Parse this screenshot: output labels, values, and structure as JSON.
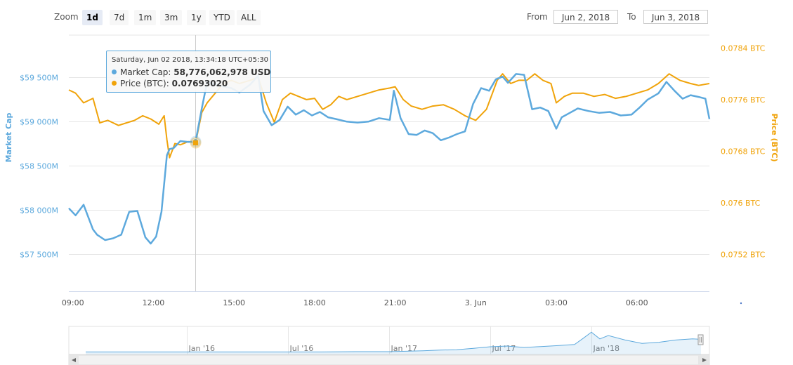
{
  "toolbar": {
    "zoom_label": "Zoom",
    "zoom_buttons": [
      "1d",
      "7d",
      "1m",
      "3m",
      "1y",
      "YTD",
      "ALL"
    ],
    "active_zoom": "1d",
    "from_label": "From",
    "from_value": "Jun 2, 2018",
    "to_label": "To",
    "to_value": "Jun 3, 2018"
  },
  "tooltip": {
    "header": "Saturday, Jun 02 2018, 13:34:18 UTC+05:30",
    "market_cap_label": "Market Cap:",
    "market_cap_value": "58,776,062,978 USD",
    "price_label": "Price (BTC):",
    "price_value": "0.07693020"
  },
  "colors": {
    "market_cap": "#5da9dd",
    "price": "#f0a30a",
    "grid": "#e6e6e6",
    "navigator": "#5da9dd"
  },
  "chart_data": {
    "type": "line",
    "xlabel": "",
    "y_left_label": "Market Cap",
    "y_right_label": "Price (BTC)",
    "x_tick_labels": [
      "09:00",
      "12:00",
      "15:00",
      "18:00",
      "21:00",
      "3. Jun",
      "03:00",
      "06:00"
    ],
    "x_tick_hours": [
      9,
      12,
      15,
      18,
      21,
      24,
      27,
      30
    ],
    "xlim_hours": [
      8.85,
      32.7
    ],
    "y_left_ticks": [
      "$57 500M",
      "$58 000M",
      "$58 500M",
      "$59 000M",
      "$59 500M"
    ],
    "y_left_tick_values": [
      57500,
      58000,
      58500,
      59000,
      59500
    ],
    "y_left_lim_musd": [
      57080,
      59980
    ],
    "y_right_ticks": [
      "0.0752 BTC",
      "0.076 BTC",
      "0.0768 BTC",
      "0.0776 BTC",
      "0.0784 BTC"
    ],
    "y_right_tick_values": [
      0.0752,
      0.076,
      0.0768,
      0.0776,
      0.0784
    ],
    "y_right_lim": [
      0.07463,
      0.0786
    ],
    "crosshair_hour": 13.57,
    "grid": true,
    "legend": "none",
    "series": [
      {
        "name": "Market Cap",
        "axis": "left",
        "x_hours": [
          8.85,
          9.1,
          9.4,
          9.75,
          9.9,
          10.2,
          10.5,
          10.8,
          11.1,
          11.4,
          11.7,
          11.9,
          12.1,
          12.3,
          12.5,
          12.6,
          12.75,
          13.0,
          13.3,
          13.57,
          13.8,
          14.0,
          14.3,
          14.6,
          14.9,
          15.2,
          15.6,
          15.9,
          16.1,
          16.4,
          16.7,
          17.0,
          17.3,
          17.6,
          17.9,
          18.2,
          18.5,
          18.8,
          19.2,
          19.6,
          20.0,
          20.4,
          20.8,
          20.95,
          21.2,
          21.5,
          21.8,
          22.1,
          22.4,
          22.7,
          23.0,
          23.3,
          23.6,
          23.9,
          24.2,
          24.5,
          24.75,
          25.0,
          25.2,
          25.5,
          25.8,
          26.1,
          26.4,
          26.7,
          27.0,
          27.2,
          27.5,
          27.8,
          28.2,
          28.6,
          29.0,
          29.4,
          29.8,
          30.1,
          30.4,
          30.8,
          31.1,
          31.4,
          31.7,
          32.0,
          32.3,
          32.55,
          32.7
        ],
        "values": [
          58020,
          57940,
          58060,
          57780,
          57720,
          57660,
          57680,
          57720,
          57980,
          57990,
          57690,
          57620,
          57700,
          57980,
          58620,
          58690,
          58700,
          58780,
          58770,
          58776,
          59150,
          59450,
          59420,
          59400,
          59380,
          59330,
          59420,
          59520,
          59120,
          58960,
          59020,
          59170,
          59080,
          59130,
          59070,
          59110,
          59050,
          59030,
          59000,
          58990,
          59000,
          59040,
          59020,
          59350,
          59040,
          58860,
          58850,
          58900,
          58870,
          58790,
          58820,
          58860,
          58890,
          59200,
          59380,
          59350,
          59480,
          59510,
          59440,
          59540,
          59530,
          59140,
          59160,
          59120,
          58920,
          59050,
          59100,
          59150,
          59120,
          59100,
          59110,
          59070,
          59080,
          59160,
          59250,
          59320,
          59450,
          59350,
          59260,
          59300,
          59280,
          59260,
          59030
        ]
      },
      {
        "name": "Price (BTC)",
        "axis": "right",
        "x_hours": [
          8.85,
          9.1,
          9.4,
          9.75,
          10.0,
          10.3,
          10.7,
          11.0,
          11.3,
          11.6,
          11.9,
          12.2,
          12.4,
          12.5,
          12.6,
          12.8,
          13.0,
          13.3,
          13.57,
          13.8,
          14.0,
          14.3,
          14.6,
          14.9,
          15.2,
          15.6,
          15.9,
          16.2,
          16.5,
          16.8,
          17.1,
          17.4,
          17.7,
          18.0,
          18.3,
          18.6,
          18.9,
          19.2,
          19.6,
          20.0,
          20.4,
          20.8,
          21.0,
          21.3,
          21.6,
          22.0,
          22.4,
          22.8,
          23.2,
          23.6,
          24.0,
          24.4,
          24.8,
          25.0,
          25.3,
          25.6,
          25.9,
          26.2,
          26.5,
          26.8,
          27.0,
          27.3,
          27.6,
          28.0,
          28.4,
          28.8,
          29.2,
          29.6,
          30.0,
          30.4,
          30.8,
          31.2,
          31.6,
          32.0,
          32.3,
          32.7
        ],
        "values": [
          0.07775,
          0.0777,
          0.07755,
          0.07762,
          0.07724,
          0.07728,
          0.0772,
          0.07724,
          0.07728,
          0.07735,
          0.0773,
          0.07722,
          0.07735,
          0.07698,
          0.0767,
          0.07692,
          0.0769,
          0.07695,
          0.07693,
          0.0774,
          0.07755,
          0.0777,
          0.07785,
          0.0779,
          0.07785,
          0.0779,
          0.07795,
          0.07755,
          0.07725,
          0.0776,
          0.0777,
          0.07765,
          0.0776,
          0.07762,
          0.07745,
          0.07752,
          0.07765,
          0.0776,
          0.07765,
          0.0777,
          0.07775,
          0.07778,
          0.0778,
          0.0776,
          0.0775,
          0.07745,
          0.0775,
          0.07752,
          0.07745,
          0.07735,
          0.07728,
          0.07745,
          0.0779,
          0.078,
          0.07785,
          0.0779,
          0.0779,
          0.078,
          0.0779,
          0.07785,
          0.07755,
          0.07765,
          0.0777,
          0.0777,
          0.07765,
          0.07768,
          0.07762,
          0.07765,
          0.0777,
          0.07775,
          0.07785,
          0.078,
          0.0779,
          0.07785,
          0.07782,
          0.07785
        ]
      }
    ],
    "navigator": {
      "type": "area",
      "labels": [
        "Jan '16",
        "Jul '16",
        "Jan '17",
        "Jul '17",
        "Jan '18"
      ],
      "label_months": [
        24,
        30,
        36,
        42,
        48
      ],
      "x_months": [
        18,
        20,
        22,
        24,
        26,
        28,
        30,
        32,
        34,
        36,
        37,
        38,
        39,
        40,
        41,
        42,
        43,
        44,
        45,
        46,
        47,
        47.5,
        48,
        48.5,
        49,
        50,
        51,
        52,
        53,
        54,
        54.5
      ],
      "values": [
        0.02,
        0.02,
        0.02,
        0.02,
        0.02,
        0.02,
        0.02,
        0.02,
        0.03,
        0.03,
        0.05,
        0.07,
        0.1,
        0.12,
        0.18,
        0.25,
        0.28,
        0.22,
        0.26,
        0.3,
        0.35,
        0.62,
        0.9,
        0.6,
        0.75,
        0.55,
        0.4,
        0.45,
        0.55,
        0.6,
        0.58
      ],
      "xlim_months": [
        17,
        55
      ]
    }
  }
}
